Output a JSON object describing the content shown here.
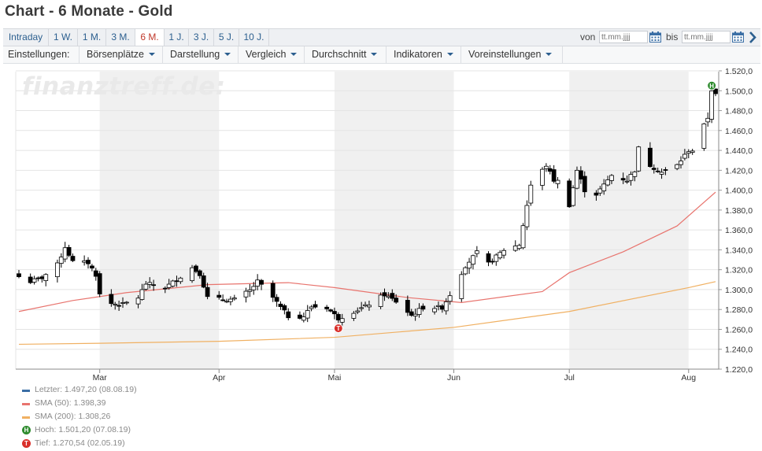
{
  "page": {
    "title": "Chart - 6 Monate - Gold",
    "watermark": "finanztreff.de:"
  },
  "range_tabs": [
    {
      "label": "Intraday",
      "active": false
    },
    {
      "label": "1 W.",
      "active": false
    },
    {
      "label": "1 M.",
      "active": false
    },
    {
      "label": "3 M.",
      "active": false
    },
    {
      "label": "6 M.",
      "active": true
    },
    {
      "label": "1 J.",
      "active": false
    },
    {
      "label": "3 J.",
      "active": false
    },
    {
      "label": "5 J.",
      "active": false
    },
    {
      "label": "10 J.",
      "active": false
    }
  ],
  "date_range": {
    "from_label": "von",
    "from_placeholder": "tt.mm.jjjj",
    "to_label": "bis",
    "to_placeholder": "tt.mm.jjjj"
  },
  "settings": {
    "label": "Einstellungen:",
    "menus": [
      "Börsenplätze",
      "Darstellung",
      "Vergleich",
      "Durchschnitt",
      "Indikatoren",
      "Voreinstellungen"
    ]
  },
  "legend": {
    "last": "Letzter: 1.497,20 (08.08.19)",
    "sma50": "SMA (50): 1.398,39",
    "sma200": "SMA (200): 1.308,26",
    "high": "Hoch: 1.501,20 (07.08.19)",
    "low": "Tief: 1.270,54 (02.05.19)",
    "high_badge": "H",
    "low_badge": "T"
  },
  "colors": {
    "sma50": "#e8746e",
    "sma200": "#f0b062",
    "last": "#3a6ea5",
    "high_badge": "#2e8b2e",
    "low_badge": "#d9302a",
    "active_tab": "#c0392b",
    "link": "#2c5f8f"
  },
  "chart_data": {
    "type": "candlestick",
    "title": "",
    "xlabel": "",
    "ylabel": "",
    "ylim": [
      1220,
      1520
    ],
    "yticks": [
      1220,
      1240,
      1260,
      1280,
      1300,
      1320,
      1340,
      1360,
      1380,
      1400,
      1420,
      1440,
      1460,
      1480,
      1500,
      1520
    ],
    "ytick_labels": [
      "1.220,0",
      "1.240,0",
      "1.260,0",
      "1.280,0",
      "1.300,0",
      "1.320,0",
      "1.340,0",
      "1.360,0",
      "1.380,0",
      "1.400,0",
      "1.420,0",
      "1.440,0",
      "1.460,0",
      "1.480,0",
      "1.500,0",
      "1.520,0"
    ],
    "xlim": [
      "2019-02-08",
      "2019-08-08"
    ],
    "month_ticks": [
      {
        "label": "Mar",
        "date": "2019-03-01"
      },
      {
        "label": "Apr",
        "date": "2019-04-01"
      },
      {
        "label": "Mai",
        "date": "2019-05-01"
      },
      {
        "label": "Jun",
        "date": "2019-06-01"
      },
      {
        "label": "Jul",
        "date": "2019-07-01"
      },
      {
        "label": "Aug",
        "date": "2019-08-01"
      }
    ],
    "anchors": [
      {
        "date": "2019-02-08",
        "close": 1313
      },
      {
        "date": "2019-02-11",
        "close": 1308
      },
      {
        "date": "2019-02-14",
        "close": 1312
      },
      {
        "date": "2019-02-18",
        "close": 1325
      },
      {
        "date": "2019-02-20",
        "close": 1343
      },
      {
        "date": "2019-02-22",
        "close": 1328
      },
      {
        "date": "2019-02-26",
        "close": 1327
      },
      {
        "date": "2019-02-28",
        "close": 1315
      },
      {
        "date": "2019-03-01",
        "close": 1295
      },
      {
        "date": "2019-03-04",
        "close": 1286
      },
      {
        "date": "2019-03-07",
        "close": 1285
      },
      {
        "date": "2019-03-11",
        "close": 1292
      },
      {
        "date": "2019-03-13",
        "close": 1306
      },
      {
        "date": "2019-03-18",
        "close": 1302
      },
      {
        "date": "2019-03-21",
        "close": 1310
      },
      {
        "date": "2019-03-25",
        "close": 1322
      },
      {
        "date": "2019-03-27",
        "close": 1316
      },
      {
        "date": "2019-03-29",
        "close": 1292
      },
      {
        "date": "2019-04-02",
        "close": 1290
      },
      {
        "date": "2019-04-05",
        "close": 1290
      },
      {
        "date": "2019-04-09",
        "close": 1299
      },
      {
        "date": "2019-04-11",
        "close": 1308
      },
      {
        "date": "2019-04-15",
        "close": 1292
      },
      {
        "date": "2019-04-17",
        "close": 1282
      },
      {
        "date": "2019-04-19",
        "close": 1273
      },
      {
        "date": "2019-04-23",
        "close": 1273
      },
      {
        "date": "2019-04-25",
        "close": 1283
      },
      {
        "date": "2019-04-29",
        "close": 1282
      },
      {
        "date": "2019-05-02",
        "close": 1271
      },
      {
        "date": "2019-05-06",
        "close": 1278
      },
      {
        "date": "2019-05-09",
        "close": 1283
      },
      {
        "date": "2019-05-14",
        "close": 1295
      },
      {
        "date": "2019-05-17",
        "close": 1288
      },
      {
        "date": "2019-05-21",
        "close": 1274
      },
      {
        "date": "2019-05-24",
        "close": 1282
      },
      {
        "date": "2019-05-29",
        "close": 1282
      },
      {
        "date": "2019-05-31",
        "close": 1295
      },
      {
        "date": "2019-06-04",
        "close": 1324
      },
      {
        "date": "2019-06-07",
        "close": 1337
      },
      {
        "date": "2019-06-10",
        "close": 1326
      },
      {
        "date": "2019-06-14",
        "close": 1340
      },
      {
        "date": "2019-06-18",
        "close": 1345
      },
      {
        "date": "2019-06-20",
        "close": 1385
      },
      {
        "date": "2019-06-21",
        "close": 1405
      },
      {
        "date": "2019-06-25",
        "close": 1425
      },
      {
        "date": "2019-06-27",
        "close": 1410
      },
      {
        "date": "2019-06-28",
        "close": 1409
      },
      {
        "date": "2019-07-01",
        "close": 1385
      },
      {
        "date": "2019-07-03",
        "close": 1420
      },
      {
        "date": "2019-07-05",
        "close": 1400
      },
      {
        "date": "2019-07-08",
        "close": 1396
      },
      {
        "date": "2019-07-10",
        "close": 1405
      },
      {
        "date": "2019-07-12",
        "close": 1415
      },
      {
        "date": "2019-07-16",
        "close": 1410
      },
      {
        "date": "2019-07-18",
        "close": 1420
      },
      {
        "date": "2019-07-19",
        "close": 1442
      },
      {
        "date": "2019-07-22",
        "close": 1425
      },
      {
        "date": "2019-07-25",
        "close": 1418
      },
      {
        "date": "2019-07-29",
        "close": 1425
      },
      {
        "date": "2019-08-01",
        "close": 1440
      },
      {
        "date": "2019-08-02",
        "close": 1440
      },
      {
        "date": "2019-08-05",
        "close": 1465
      },
      {
        "date": "2019-08-06",
        "close": 1473
      },
      {
        "date": "2019-08-07",
        "close": 1501
      },
      {
        "date": "2019-08-08",
        "close": 1497
      }
    ],
    "sma50": [
      {
        "date": "2019-02-08",
        "value": 1278
      },
      {
        "date": "2019-02-22",
        "value": 1289
      },
      {
        "date": "2019-03-08",
        "value": 1297
      },
      {
        "date": "2019-03-29",
        "value": 1305
      },
      {
        "date": "2019-04-19",
        "value": 1307
      },
      {
        "date": "2019-05-01",
        "value": 1302
      },
      {
        "date": "2019-05-20",
        "value": 1292
      },
      {
        "date": "2019-06-03",
        "value": 1287
      },
      {
        "date": "2019-06-24",
        "value": 1298
      },
      {
        "date": "2019-07-01",
        "value": 1317
      },
      {
        "date": "2019-07-15",
        "value": 1338
      },
      {
        "date": "2019-07-29",
        "value": 1364
      },
      {
        "date": "2019-08-08",
        "value": 1398
      }
    ],
    "sma200": [
      {
        "date": "2019-02-08",
        "value": 1245
      },
      {
        "date": "2019-03-01",
        "value": 1246
      },
      {
        "date": "2019-04-01",
        "value": 1248
      },
      {
        "date": "2019-05-01",
        "value": 1252
      },
      {
        "date": "2019-06-01",
        "value": 1262
      },
      {
        "date": "2019-07-01",
        "value": 1278
      },
      {
        "date": "2019-08-01",
        "value": 1302
      },
      {
        "date": "2019-08-08",
        "value": 1308
      }
    ],
    "high": {
      "date": "2019-08-07",
      "value": 1501.2
    },
    "low": {
      "date": "2019-05-02",
      "value": 1270.54
    },
    "shaded_months": [
      "2019-03",
      "2019-05",
      "2019-07"
    ]
  }
}
